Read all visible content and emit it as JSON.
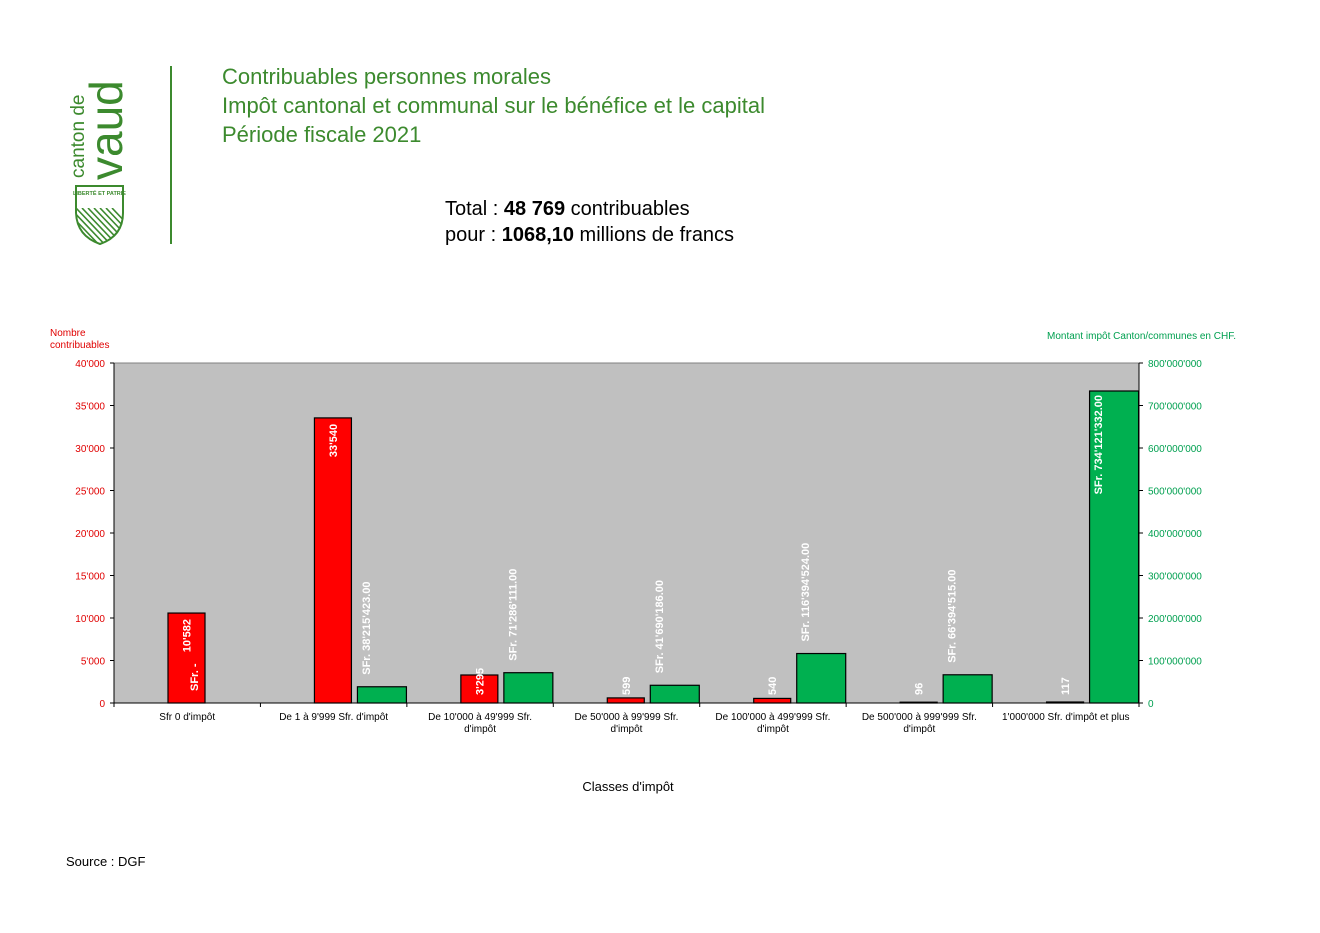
{
  "logo": {
    "text_top": "canton de",
    "text_big": "vaud",
    "shield_text": "LIBERTÉ ET PATRIE",
    "color": "#3c8a2e"
  },
  "header": {
    "line1": "Contribuables personnes morales",
    "line2": "Impôt cantonal et communal sur le bénéfice et le capital",
    "line3": "Période fiscale 2021",
    "color": "#3c8a2e"
  },
  "totals": {
    "l1_prefix": "Total : ",
    "l1_value": "48 769",
    "l1_suffix": " contribuables",
    "l2_prefix": "pour : ",
    "l2_value": "1068,10",
    "l2_suffix": " millions de francs"
  },
  "footer": {
    "source": "Source : DGF"
  },
  "chart_data": {
    "type": "bar",
    "ylabel_left": "Nombre contribuables",
    "ylabel_right": "Montant impôt Canton/communes en CHF.",
    "xlabel": "Classes d'impôt",
    "ylim_left": [
      0,
      40000
    ],
    "ylim_right": [
      0,
      800000000
    ],
    "yticks_left": [
      "0",
      "5'000",
      "10'000",
      "15'000",
      "20'000",
      "25'000",
      "30'000",
      "35'000",
      "40'000"
    ],
    "yticks_right": [
      "0",
      "100'000'000",
      "200'000'000",
      "300'000'000",
      "400'000'000",
      "500'000'000",
      "600'000'000",
      "700'000'000",
      "800'000'000"
    ],
    "categories": [
      [
        "Sfr 0 d'impôt"
      ],
      [
        "De 1 à 9'999 Sfr. d'impôt"
      ],
      [
        "De 10'000 à 49'999 Sfr.",
        "d'impôt"
      ],
      [
        "De 50'000 à 99'999 Sfr.",
        "d'impôt"
      ],
      [
        "De 100'000 à 499'999 Sfr.",
        "d'impôt"
      ],
      [
        "De 500'000 à 999'999 Sfr.",
        "d'impôt"
      ],
      [
        "1'000'000 Sfr. d'impôt et plus"
      ]
    ],
    "series": [
      {
        "axis": "left",
        "color": "#ff0000",
        "values": [
          10582,
          33540,
          3295,
          599,
          540,
          96,
          117
        ],
        "labels": [
          "10'582",
          "33'540",
          "3'295",
          "599",
          "540",
          "96",
          "117"
        ]
      },
      {
        "axis": "right",
        "color": "#00b050",
        "values": [
          0,
          38215423,
          71286111,
          41690186,
          116394524,
          66394515,
          734121332
        ],
        "labels": [
          "SFr. -",
          "SFr. 38'215'423.00",
          "SFr. 71'286'111.00",
          "SFr. 41'690'186.00",
          "SFr. 116'394'524.00",
          "SFr. 66'394'515.00",
          "SFr. 734'121'332.00"
        ]
      }
    ],
    "plot_background": "#c0c0c0",
    "left_axis_color": "#e00000",
    "right_axis_color": "#00a050"
  }
}
